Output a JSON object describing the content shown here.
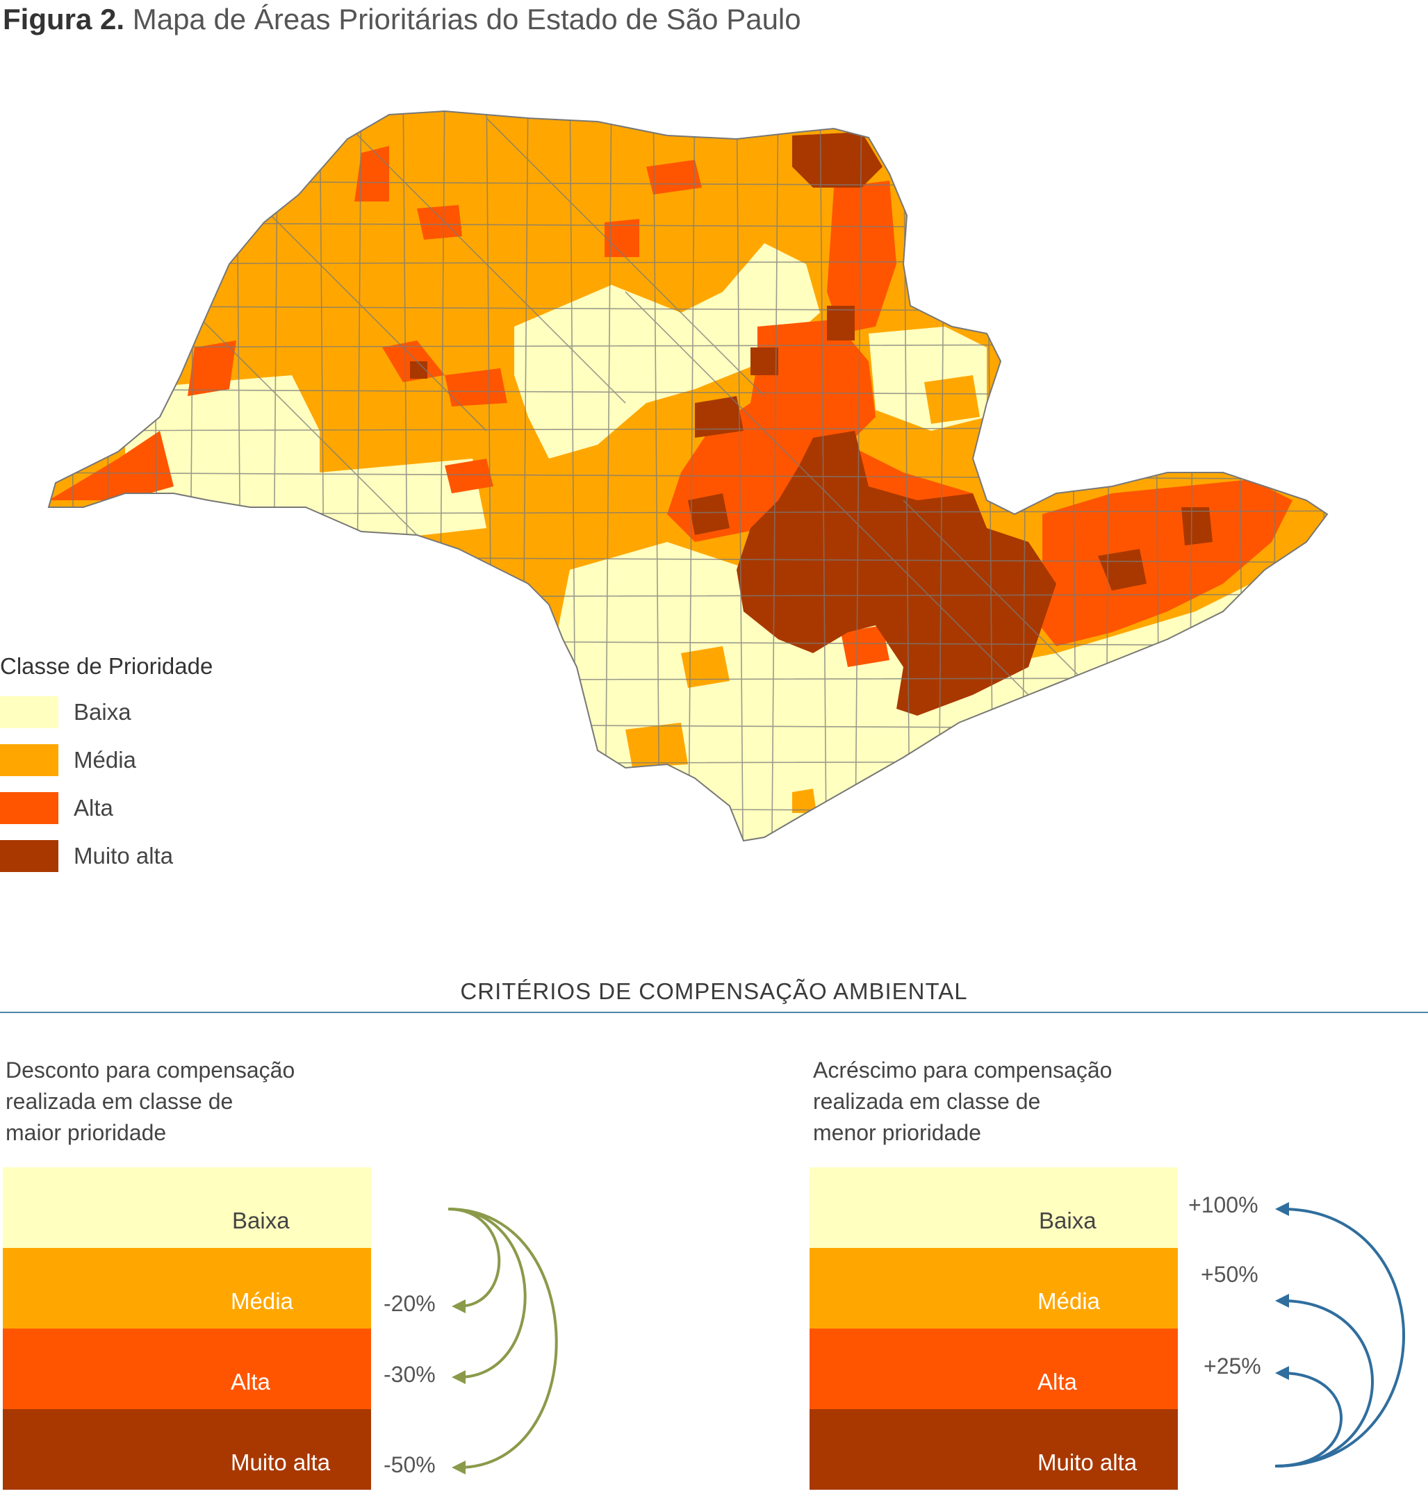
{
  "figure": {
    "label": "Figura 2.",
    "title": "Mapa de Áreas Prioritárias do Estado de São Paulo"
  },
  "legend": {
    "title": "Classe de Prioridade",
    "items": [
      {
        "label": "Baixa",
        "color": "#ffffc0"
      },
      {
        "label": "Média",
        "color": "#ffa700"
      },
      {
        "label": "Alta",
        "color": "#ff5500"
      },
      {
        "label": "Muito alta",
        "color": "#a83800"
      }
    ]
  },
  "section": {
    "title": "CRITÉRIOS DE COMPENSAÇÃO AMBIENTAL"
  },
  "left_panel": {
    "caption": [
      "Desconto para compensação",
      "realizada em classe de",
      "maior prioridade"
    ],
    "bands": [
      "Baixa",
      "Média",
      "Alta",
      "Muito alta"
    ],
    "percentages": [
      "-20%",
      "-30%",
      "-50%"
    ],
    "arrow_color": "#8a9a4a"
  },
  "right_panel": {
    "caption": [
      "Acréscimo para compensação",
      "realizada em classe de",
      "menor prioridade"
    ],
    "bands": [
      "Baixa",
      "Média",
      "Alta",
      "Muito alta"
    ],
    "percentages": [
      "+100%",
      "+50%",
      "+25%"
    ],
    "arrow_color": "#2f6e9e"
  }
}
